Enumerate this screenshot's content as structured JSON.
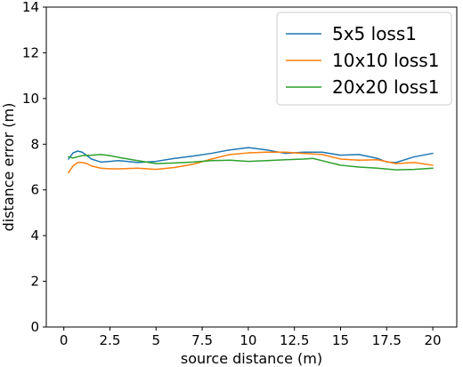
{
  "chart_data": {
    "type": "line",
    "xlabel": "source distance (m)",
    "ylabel": "distance error (m)",
    "xlim": [
      -0.95,
      21.3
    ],
    "ylim": [
      0,
      14
    ],
    "x_ticks": [
      0,
      2.5,
      5,
      7.5,
      10,
      12.5,
      15,
      17.5,
      20
    ],
    "x_tick_labels": [
      "0",
      "2.5",
      "5",
      "7.5",
      "10",
      "12.5",
      "15",
      "17.5",
      "20"
    ],
    "y_ticks": [
      0,
      2,
      4,
      6,
      8,
      10,
      12,
      14
    ],
    "y_tick_labels": [
      "0",
      "2",
      "4",
      "6",
      "8",
      "10",
      "12",
      "14"
    ],
    "grid": false,
    "legend_position": "top-right",
    "series": [
      {
        "name": "5x5 loss1",
        "color": "#1f77b4",
        "x": [
          0.25,
          0.5,
          0.75,
          1.0,
          1.25,
          1.5,
          2.0,
          2.5,
          3.0,
          4.0,
          5.0,
          6.0,
          7.0,
          8.0,
          9.0,
          10.0,
          11.0,
          12.0,
          13.0,
          14.0,
          15.0,
          16.0,
          17.0,
          17.5,
          18.0,
          19.0,
          20.0
        ],
        "values": [
          7.35,
          7.62,
          7.7,
          7.65,
          7.5,
          7.35,
          7.22,
          7.25,
          7.28,
          7.2,
          7.25,
          7.38,
          7.48,
          7.6,
          7.75,
          7.85,
          7.75,
          7.6,
          7.65,
          7.65,
          7.52,
          7.55,
          7.38,
          7.22,
          7.2,
          7.45,
          7.6
        ]
      },
      {
        "name": "10x10 loss1",
        "color": "#ff7f0e",
        "x": [
          0.25,
          0.5,
          0.75,
          1.0,
          1.25,
          1.5,
          2.0,
          2.5,
          3.0,
          4.0,
          5.0,
          6.0,
          7.0,
          8.0,
          9.0,
          10.0,
          11.0,
          12.0,
          13.0,
          14.0,
          15.0,
          16.0,
          17.0,
          18.0,
          19.0,
          20.0
        ],
        "values": [
          6.75,
          7.05,
          7.2,
          7.2,
          7.15,
          7.05,
          6.95,
          6.92,
          6.92,
          6.95,
          6.9,
          6.98,
          7.12,
          7.35,
          7.55,
          7.62,
          7.65,
          7.65,
          7.6,
          7.55,
          7.35,
          7.3,
          7.32,
          7.15,
          7.2,
          7.08
        ]
      },
      {
        "name": "20x20 loss1",
        "color": "#2ca02c",
        "x": [
          0.25,
          0.5,
          0.75,
          1.0,
          1.5,
          2.0,
          2.5,
          3.0,
          4.0,
          5.0,
          6.0,
          7.0,
          8.0,
          9.0,
          10.0,
          11.0,
          12.0,
          13.0,
          13.5,
          14.0,
          15.0,
          16.0,
          17.0,
          18.0,
          19.0,
          20.0
        ],
        "values": [
          7.45,
          7.4,
          7.45,
          7.5,
          7.52,
          7.55,
          7.5,
          7.42,
          7.28,
          7.15,
          7.18,
          7.22,
          7.28,
          7.3,
          7.25,
          7.28,
          7.32,
          7.35,
          7.38,
          7.28,
          7.08,
          7.0,
          6.95,
          6.88,
          6.9,
          6.95
        ]
      }
    ]
  }
}
